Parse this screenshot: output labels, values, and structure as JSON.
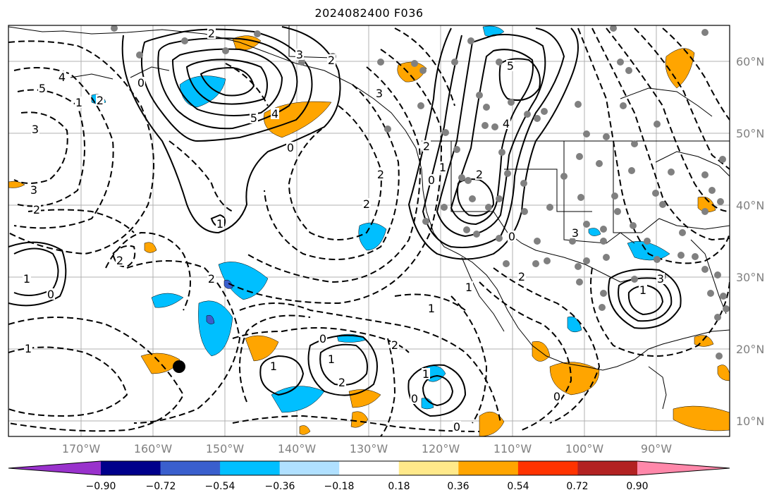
{
  "title": "2024082400 F036",
  "lat_labels": [
    "60°N",
    "50°N",
    "40°N",
    "30°N",
    "20°N",
    "10°N"
  ],
  "lon_labels": [
    "170°W",
    "160°W",
    "150°W",
    "140°W",
    "130°W",
    "120°W",
    "110°W",
    "100°W",
    "90°W"
  ],
  "colorbar": {
    "labels": [
      "−0.90",
      "−0.72",
      "−0.54",
      "−0.36",
      "−0.18",
      "0.18",
      "0.36",
      "0.54",
      "0.72",
      "0.90"
    ],
    "colors": [
      "#9932cc",
      "#00008b",
      "#3a5fcd",
      "#00bfff",
      "#b0e0ff",
      "#ffffff",
      "#ffe98a",
      "#ffa500",
      "#ff3300",
      "#b22222",
      "#ff88aa"
    ],
    "extend": "both"
  },
  "contour_labels": [
    {
      "text": "4"
    },
    {
      "text": "5"
    },
    {
      "text": "3"
    },
    {
      "text": "2"
    },
    {
      "text": "1"
    },
    {
      "text": "0"
    },
    {
      "text": "5"
    },
    {
      "text": "4"
    },
    {
      "text": "0"
    },
    {
      "text": "3"
    },
    {
      "text": "2"
    },
    {
      "text": "2"
    },
    {
      "text": "1"
    },
    {
      "text": "4"
    },
    {
      "text": "5"
    },
    {
      "text": "2"
    },
    {
      "text": "3"
    },
    {
      "text": "2"
    },
    {
      "text": "1"
    },
    {
      "text": "0"
    },
    {
      "text": "1"
    },
    {
      "text": "0"
    },
    {
      "text": "2"
    },
    {
      "text": "1"
    },
    {
      "text": "2"
    },
    {
      "text": "2"
    },
    {
      "text": "1"
    },
    {
      "text": "2"
    },
    {
      "text": "2"
    },
    {
      "text": "1"
    },
    {
      "text": "0"
    },
    {
      "text": "0"
    },
    {
      "text": "1"
    },
    {
      "text": "0"
    },
    {
      "text": "2"
    },
    {
      "text": "0"
    },
    {
      "text": "1"
    },
    {
      "text": "3"
    },
    {
      "text": "3"
    },
    {
      "text": "1"
    },
    {
      "text": "1"
    },
    {
      "text": "0"
    },
    {
      "text": "3"
    },
    {
      "text": "2"
    },
    {
      "text": "2"
    }
  ]
}
